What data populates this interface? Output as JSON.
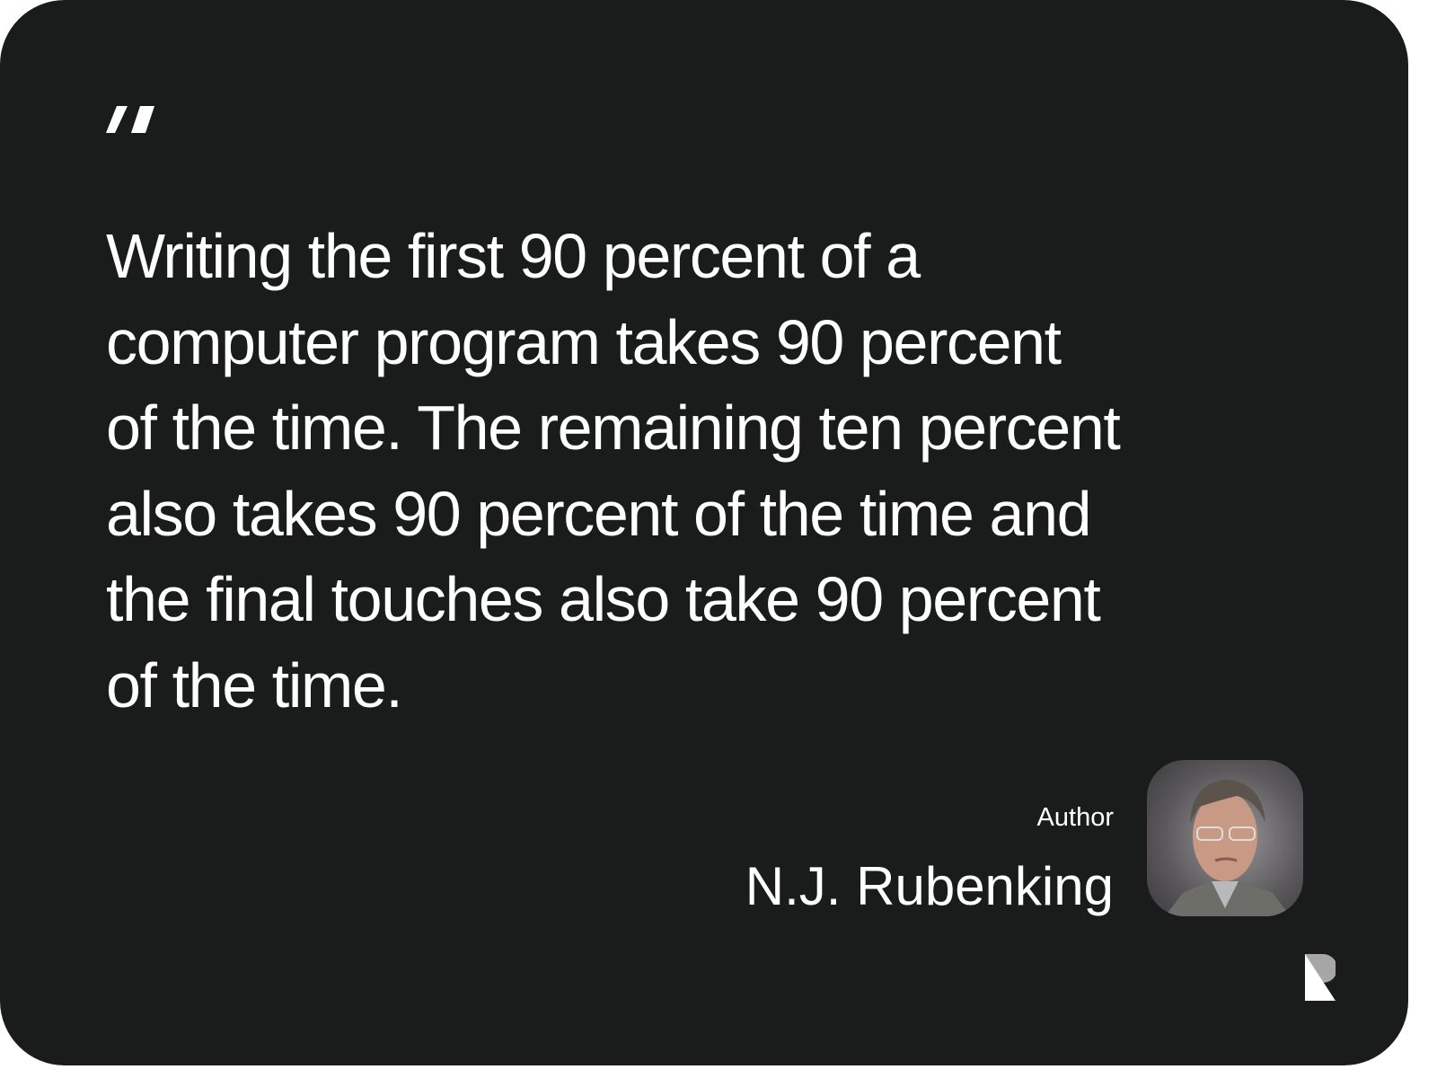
{
  "quote": {
    "icon": "quote-mark-icon",
    "lines": [
      "Writing the first 90 percent of a",
      "computer program takes 90 percent",
      "of the time. The remaining ten percent",
      "also takes 90 percent of the time and",
      "the final touches also take 90 percent",
      "of the time."
    ]
  },
  "author": {
    "role": "Author",
    "name": "N.J. Rubenking"
  },
  "colors": {
    "background": "#1a1b1b",
    "text": "#ffffff"
  }
}
